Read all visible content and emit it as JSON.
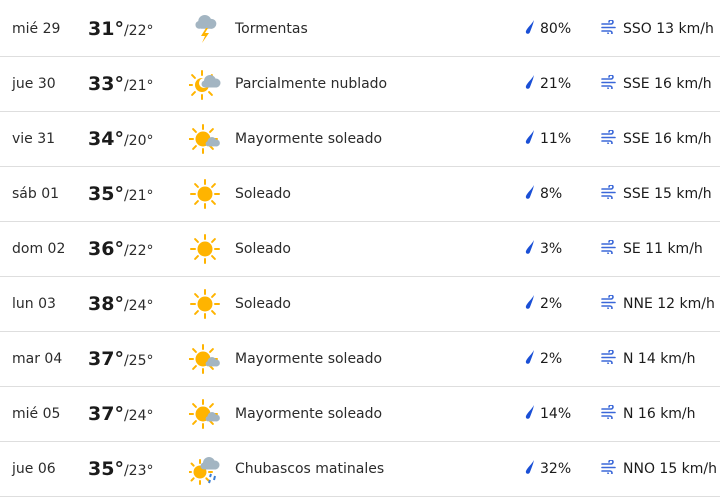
{
  "colors": {
    "sun": "#ffb400",
    "cloud": "#a3b5c2",
    "rain_icon": "#1a4fd6",
    "wind_icon": "#3b68d8",
    "divider": "#dedede"
  },
  "days": [
    {
      "day": "mié 29",
      "high": "31°",
      "low": "22°",
      "icon": "thunderstorm-icon",
      "condition": "Tormentas",
      "precip": "80%",
      "wind": "SSO 13 km/h"
    },
    {
      "day": "jue 30",
      "high": "33°",
      "low": "21°",
      "icon": "partly-cloudy-icon",
      "condition": "Parcialmente nublado",
      "precip": "21%",
      "wind": "SSE 16 km/h"
    },
    {
      "day": "vie 31",
      "high": "34°",
      "low": "20°",
      "icon": "mostly-sunny-icon",
      "condition": "Mayormente soleado",
      "precip": "11%",
      "wind": "SSE 16 km/h"
    },
    {
      "day": "sáb 01",
      "high": "35°",
      "low": "21°",
      "icon": "sunny-icon",
      "condition": "Soleado",
      "precip": "8%",
      "wind": "SSE 15 km/h"
    },
    {
      "day": "dom 02",
      "high": "36°",
      "low": "22°",
      "icon": "sunny-icon",
      "condition": "Soleado",
      "precip": "3%",
      "wind": "SE 11 km/h"
    },
    {
      "day": "lun 03",
      "high": "38°",
      "low": "24°",
      "icon": "sunny-icon",
      "condition": "Soleado",
      "precip": "2%",
      "wind": "NNE 12 km/h"
    },
    {
      "day": "mar 04",
      "high": "37°",
      "low": "25°",
      "icon": "mostly-sunny-icon",
      "condition": "Mayormente soleado",
      "precip": "2%",
      "wind": "N 14 km/h"
    },
    {
      "day": "mié 05",
      "high": "37°",
      "low": "24°",
      "icon": "mostly-sunny-icon",
      "condition": "Mayormente soleado",
      "precip": "14%",
      "wind": "N 16 km/h"
    },
    {
      "day": "jue 06",
      "high": "35°",
      "low": "23°",
      "icon": "morning-showers-icon",
      "condition": "Chubascos matinales",
      "precip": "32%",
      "wind": "NNO 15 km/h"
    }
  ]
}
